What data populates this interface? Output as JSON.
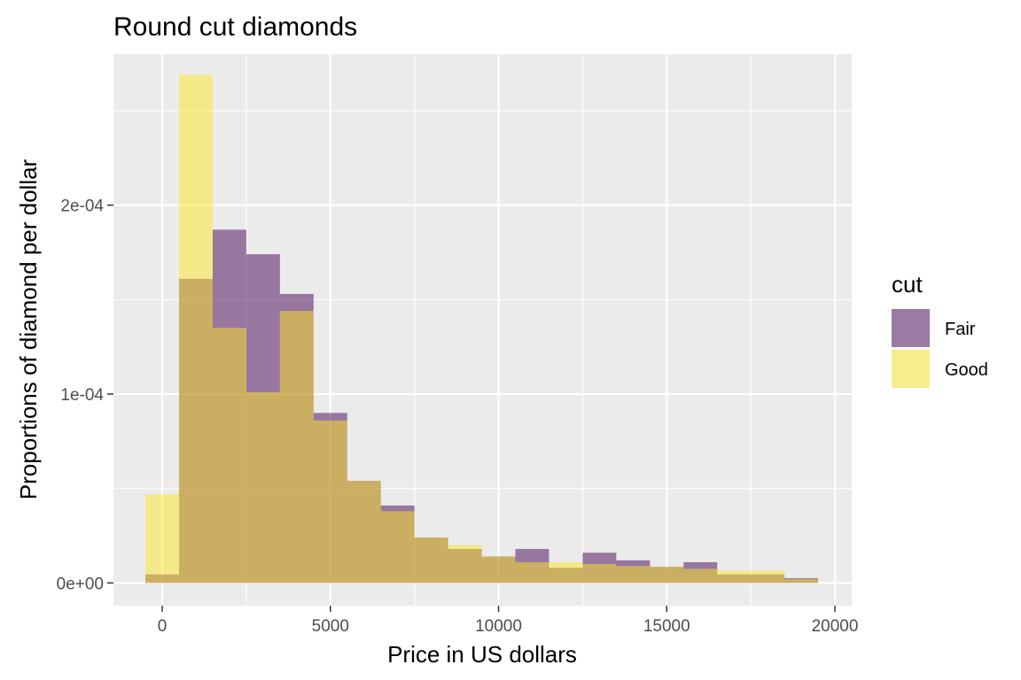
{
  "chart_data": {
    "type": "bar",
    "title": "Round cut diamonds",
    "xlabel": "Price in US dollars",
    "ylabel": "Proportions of diamond per dollar",
    "xlim": [
      -1450,
      20500
    ],
    "ylim": [
      -1.2e-05,
      0.00028
    ],
    "x_ticks": [
      0,
      5000,
      10000,
      15000,
      20000
    ],
    "x_tick_labels": [
      "0",
      "5000",
      "10000",
      "15000",
      "20000"
    ],
    "y_ticks": [
      0,
      0.0001,
      0.0002
    ],
    "y_tick_labels": [
      "0e+00",
      "1e-04",
      "2e-04"
    ],
    "bin_width": 1000,
    "bin_centers": [
      0,
      1000,
      2000,
      3000,
      4000,
      5000,
      6000,
      7000,
      8000,
      9000,
      10000,
      11000,
      12000,
      13000,
      14000,
      15000,
      16000,
      17000,
      18000,
      19000
    ],
    "grid": true,
    "legend_title": "cut",
    "legend_position": "right",
    "series": [
      {
        "name": "Fair",
        "color": "#440154",
        "opacity": 0.5,
        "values": [
          4.5e-06,
          0.000161,
          0.000187,
          0.000174,
          0.000153,
          9e-05,
          5.4e-05,
          4.1e-05,
          2.4e-05,
          1.8e-05,
          1.4e-05,
          1.8e-05,
          8e-06,
          1.6e-05,
          1.2e-05,
          8.5e-06,
          1.1e-05,
          4.5e-06,
          4.5e-06,
          2.5e-06
        ]
      },
      {
        "name": "Good",
        "color": "#FDE725",
        "opacity": 0.5,
        "values": [
          4.7e-05,
          0.000269,
          0.000135,
          0.000101,
          0.000144,
          8.6e-05,
          5.4e-05,
          3.8e-05,
          2.4e-05,
          2e-05,
          1.4e-05,
          1.1e-05,
          1.1e-05,
          1e-05,
          9e-06,
          8.5e-06,
          7.5e-06,
          6.5e-06,
          6.5e-06,
          2e-06
        ]
      }
    ]
  }
}
